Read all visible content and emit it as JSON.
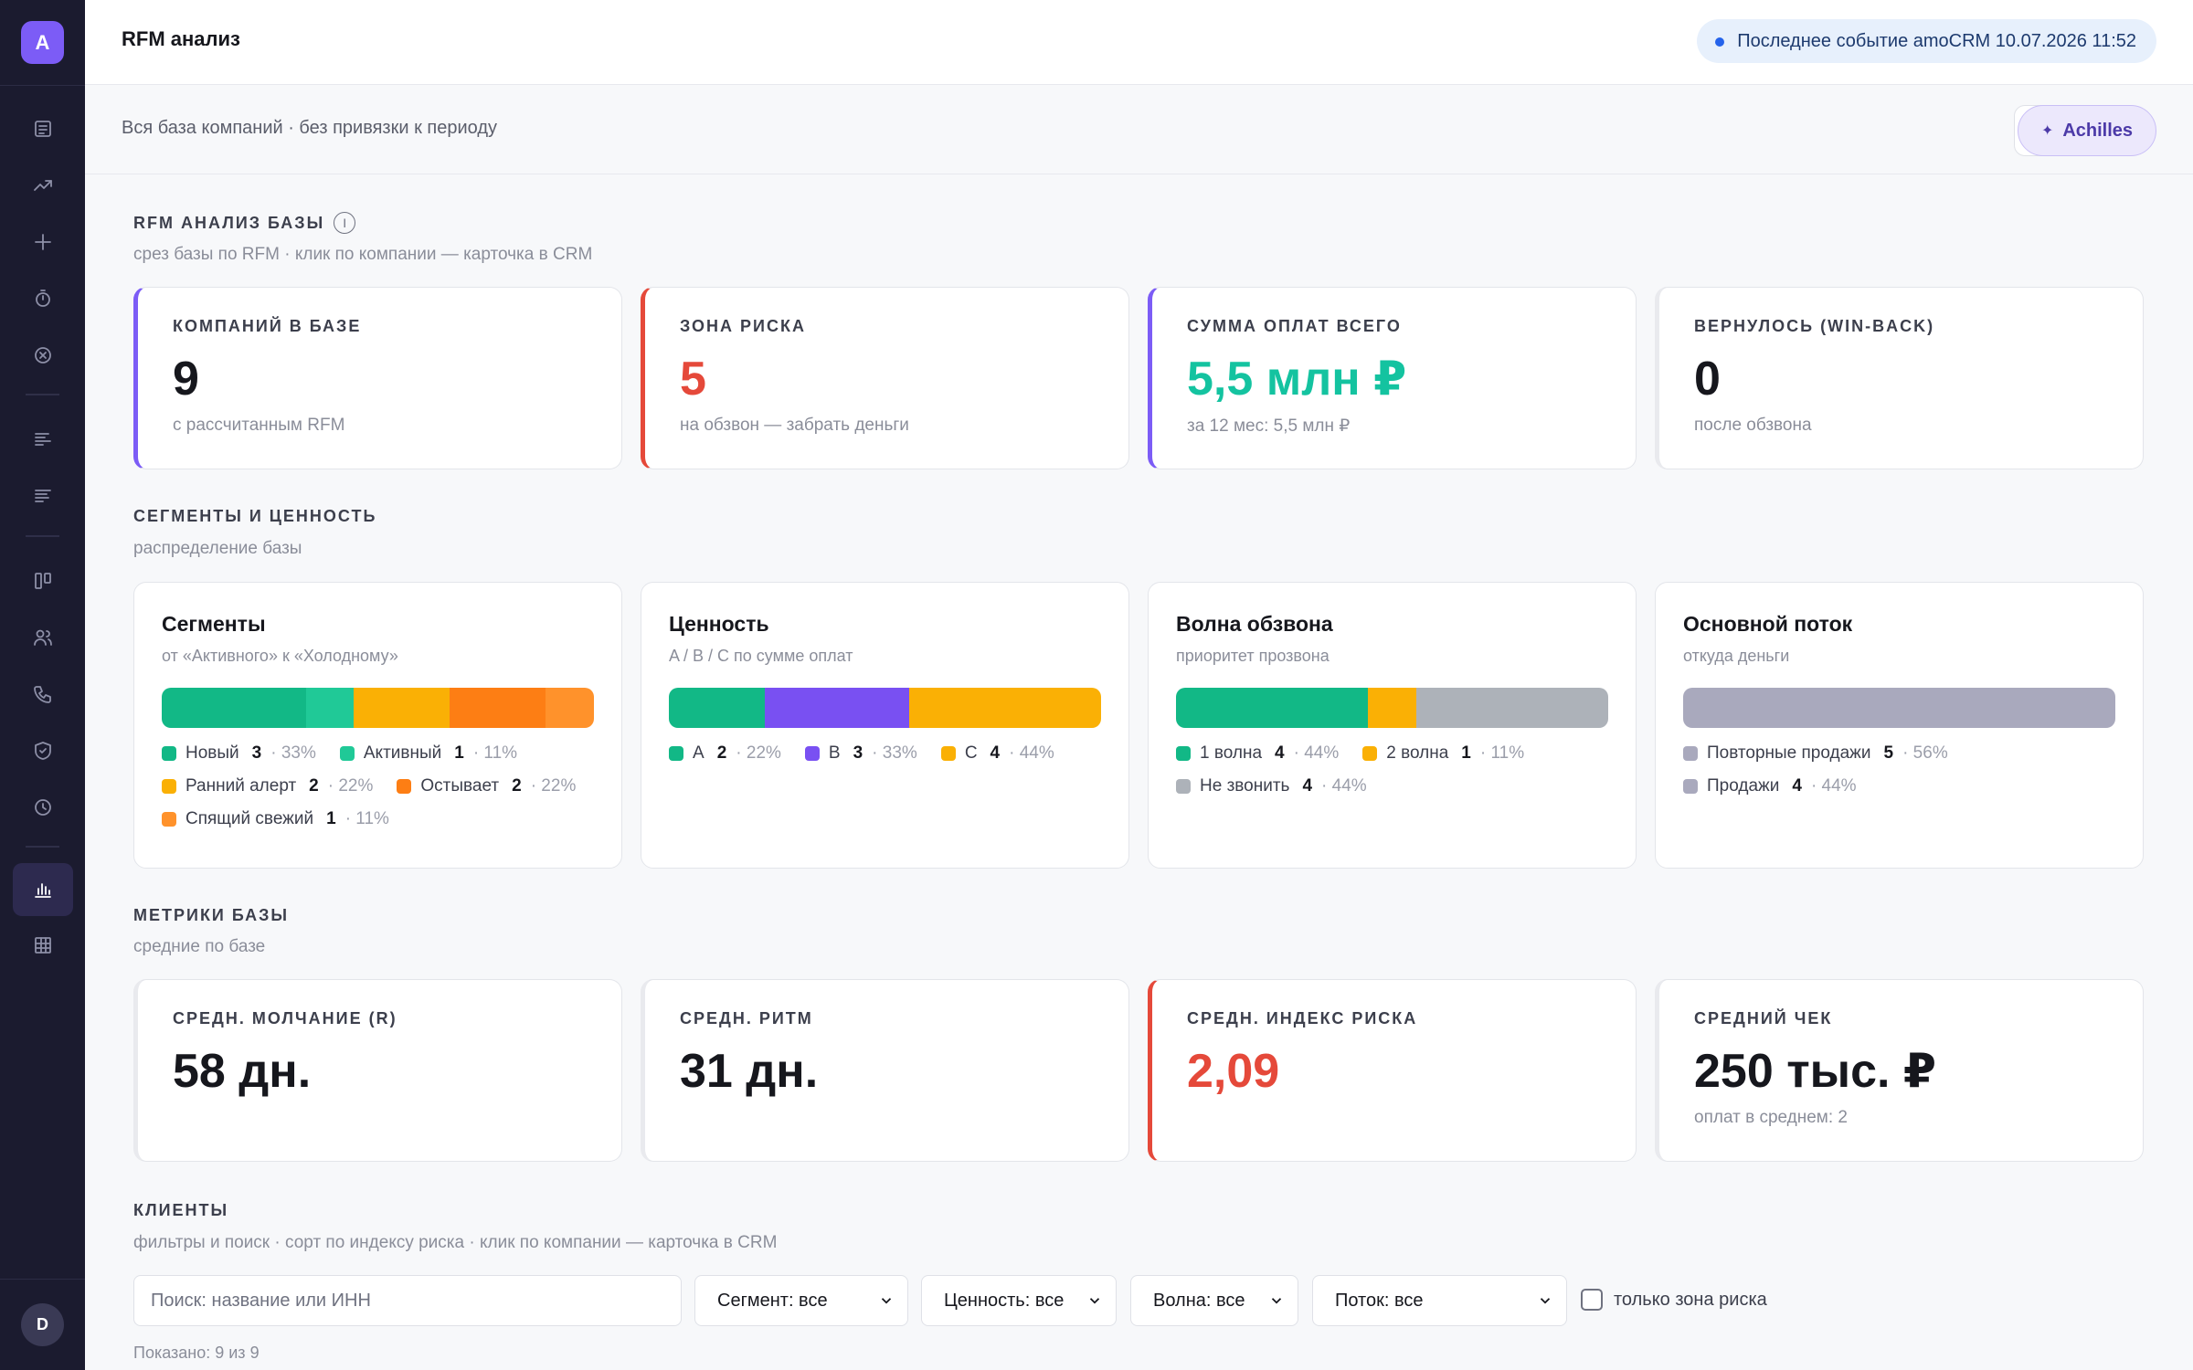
{
  "app": {
    "logo_letter": "A",
    "user_initial": "D"
  },
  "sidebar": {
    "icons": [
      "list-icon",
      "trend-icon",
      "plus-icon",
      "timer-icon",
      "close-circle-icon",
      "bars-icon",
      "bars-alt-icon",
      "board-icon",
      "users-icon",
      "phone-icon",
      "shield-icon",
      "clock-icon",
      "chart-icon",
      "grid-icon"
    ],
    "active": "chart-icon"
  },
  "header": {
    "title": "RFM анализ",
    "event_label": "Последнее событие amoCRM 10.07.2026 11:52"
  },
  "subbar": {
    "text": "Вся база компаний · без привязки к периоду",
    "achilles_label": "Achilles"
  },
  "rfm": {
    "title": "RFM АНАЛИЗ БАЗЫ",
    "subtitle": "срез базы по RFM · клик по компании — карточка в CRM",
    "cards": [
      {
        "label": "КОМПАНИЙ В БАЗЕ",
        "value": "9",
        "note": "с рассчитанным RFM",
        "accent": "#7c5cf6",
        "value_color": "#16171d"
      },
      {
        "label": "ЗОНА РИСКА",
        "value": "5",
        "note": "на обзвон — забрать деньги",
        "accent": "#e5493a",
        "value_color": "#e5493a"
      },
      {
        "label": "СУММА ОПЛАТ ВСЕГО",
        "value": "5,5 млн ₽",
        "note": "за 12 мес: 5,5 млн ₽",
        "accent": "#7c5cf6",
        "value_color": "#14c3a0"
      },
      {
        "label": "ВЕРНУЛОСЬ (WIN-BACK)",
        "value": "0",
        "note": "после обзвона",
        "accent": "#e9eaee",
        "value_color": "#16171d"
      }
    ]
  },
  "segments": {
    "title": "СЕГМЕНТЫ И ЦЕННОСТЬ",
    "subtitle": "распределение базы",
    "cards": [
      {
        "title": "Сегменты",
        "sub": "от «Активного» к «Холодному»",
        "items": [
          {
            "name": "Новый",
            "count": "3",
            "pct": "· 33%",
            "share": 0.33,
            "color": "#12b886"
          },
          {
            "name": "Активный",
            "count": "1",
            "pct": "· 11%",
            "share": 0.11,
            "color": "#20c997"
          },
          {
            "name": "Ранний алерт",
            "count": "2",
            "pct": "· 22%",
            "share": 0.22,
            "color": "#fab005"
          },
          {
            "name": "Остывает",
            "count": "2",
            "pct": "· 22%",
            "share": 0.22,
            "color": "#fd7e14"
          },
          {
            "name": "Спящий свежий",
            "count": "1",
            "pct": "· 11%",
            "share": 0.11,
            "color": "#ff922b"
          }
        ]
      },
      {
        "title": "Ценность",
        "sub": "A / B / C по сумме оплат",
        "items": [
          {
            "name": "A",
            "count": "2",
            "pct": "· 22%",
            "share": 0.22,
            "color": "#12b886"
          },
          {
            "name": "B",
            "count": "3",
            "pct": "· 33%",
            "share": 0.33,
            "color": "#7950f2"
          },
          {
            "name": "C",
            "count": "4",
            "pct": "· 44%",
            "share": 0.44,
            "color": "#fab005"
          }
        ]
      },
      {
        "title": "Волна обзвона",
        "sub": "приоритет прозвона",
        "items": [
          {
            "name": "1 волна",
            "count": "4",
            "pct": "· 44%",
            "share": 0.44,
            "color": "#12b886"
          },
          {
            "name": "2 волна",
            "count": "1",
            "pct": "· 11%",
            "share": 0.11,
            "color": "#fab005"
          },
          {
            "name": "Не звонить",
            "count": "4",
            "pct": "· 44%",
            "share": 0.44,
            "color": "#adb2b9"
          }
        ]
      },
      {
        "title": "Основной поток",
        "sub": "откуда деньги",
        "items": [
          {
            "name": "Повторные продажи",
            "count": "5",
            "pct": "· 56%",
            "share": 0.56,
            "color": "#a9a9bd"
          },
          {
            "name": "Продажи",
            "count": "4",
            "pct": "· 44%",
            "share": 0.44,
            "color": "#a9a9bd"
          }
        ]
      }
    ]
  },
  "metrics": {
    "title": "МЕТРИКИ БАЗЫ",
    "subtitle": "средние по базе",
    "cards": [
      {
        "label": "СРЕДН. МОЛЧАНИЕ (R)",
        "value": "58 дн.",
        "note": "",
        "accent": "#e9eaee",
        "value_color": "#16171d"
      },
      {
        "label": "СРЕДН. РИТМ",
        "value": "31 дн.",
        "note": "",
        "accent": "#e9eaee",
        "value_color": "#16171d"
      },
      {
        "label": "СРЕДН. ИНДЕКС РИСКА",
        "value": "2,09",
        "note": "",
        "accent": "#e5493a",
        "value_color": "#e5493a"
      },
      {
        "label": "СРЕДНИЙ ЧЕК",
        "value": "250 тыс. ₽",
        "note": "оплат в среднем: 2",
        "accent": "#e9eaee",
        "value_color": "#16171d"
      }
    ]
  },
  "clients": {
    "title": "КЛИЕНТЫ",
    "subtitle": "фильтры и поиск · сорт по индексу риска · клик по компании — карточка в CRM",
    "search_placeholder": "Поиск: название или ИНН",
    "filters": [
      "Сегмент: все",
      "Ценность: все",
      "Волна: все",
      "Поток: все"
    ],
    "only_risk_label": "только зона риска",
    "shown": "Показано: 9 из 9"
  }
}
